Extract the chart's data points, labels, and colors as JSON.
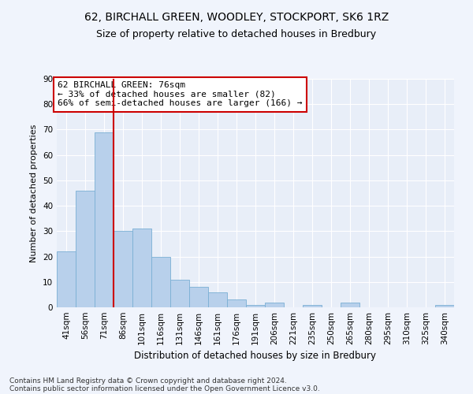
{
  "title": "62, BIRCHALL GREEN, WOODLEY, STOCKPORT, SK6 1RZ",
  "subtitle": "Size of property relative to detached houses in Bredbury",
  "xlabel": "Distribution of detached houses by size in Bredbury",
  "ylabel": "Number of detached properties",
  "bar_color": "#b8d0eb",
  "bar_edge_color": "#7aafd4",
  "background_color": "#e8eef8",
  "grid_color": "#ffffff",
  "fig_background": "#f0f4fc",
  "categories": [
    "41sqm",
    "56sqm",
    "71sqm",
    "86sqm",
    "101sqm",
    "116sqm",
    "131sqm",
    "146sqm",
    "161sqm",
    "176sqm",
    "191sqm",
    "206sqm",
    "221sqm",
    "235sqm",
    "250sqm",
    "265sqm",
    "280sqm",
    "295sqm",
    "310sqm",
    "325sqm",
    "340sqm"
  ],
  "values": [
    22,
    46,
    69,
    30,
    31,
    20,
    11,
    8,
    6,
    3,
    1,
    2,
    0,
    1,
    0,
    2,
    0,
    0,
    0,
    0,
    1
  ],
  "ylim": [
    0,
    90
  ],
  "yticks": [
    0,
    10,
    20,
    30,
    40,
    50,
    60,
    70,
    80,
    90
  ],
  "vline_color": "#cc0000",
  "annotation_text": "62 BIRCHALL GREEN: 76sqm\n← 33% of detached houses are smaller (82)\n66% of semi-detached houses are larger (166) →",
  "annotation_box_color": "#ffffff",
  "annotation_box_edge": "#cc0000",
  "footnote_line1": "Contains HM Land Registry data © Crown copyright and database right 2024.",
  "footnote_line2": "Contains public sector information licensed under the Open Government Licence v3.0.",
  "title_fontsize": 10,
  "subtitle_fontsize": 9,
  "xlabel_fontsize": 8.5,
  "ylabel_fontsize": 8,
  "tick_fontsize": 7.5,
  "annotation_fontsize": 8,
  "footnote_fontsize": 6.5
}
